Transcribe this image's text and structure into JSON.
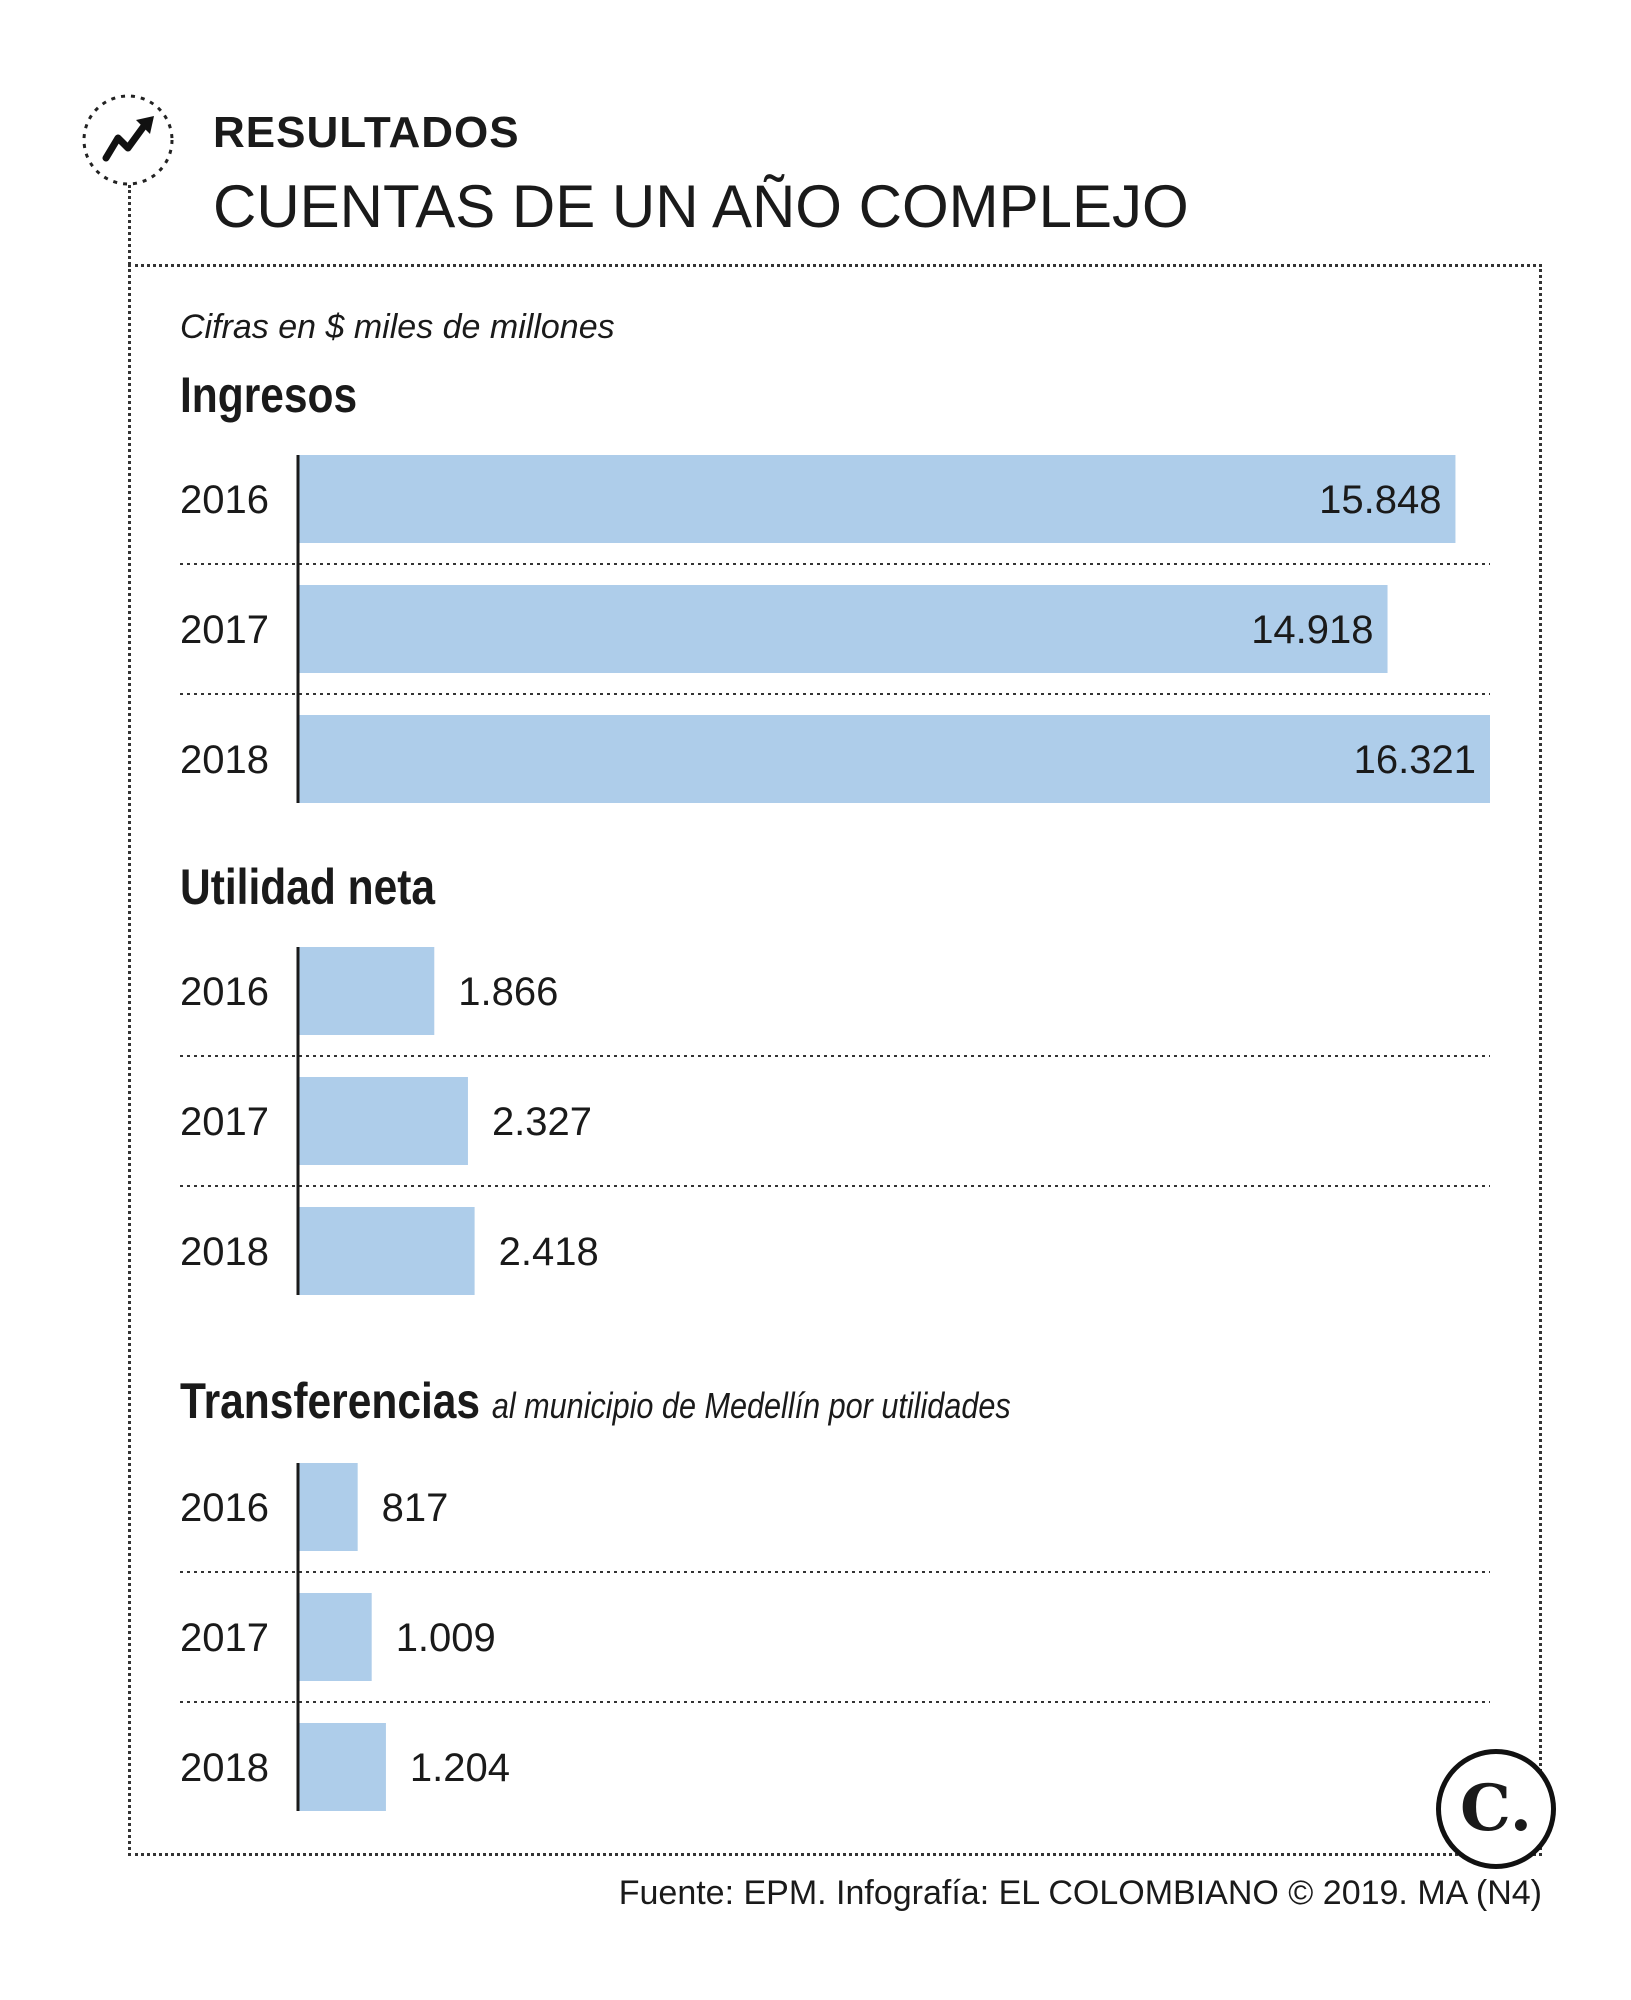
{
  "header": {
    "kicker": "RESULTADOS",
    "headline": "CUENTAS DE UN AÑO COMPLEJO",
    "icon": "trending-up-icon"
  },
  "units_note": "Cifras en $ miles de millones",
  "source": "Fuente: EPM. Infografía: EL COLOMBIANO © 2019. MA (N4)",
  "logo_icon": "el-colombiano-logo",
  "colors": {
    "bar": "#aecdea",
    "axis": "#1a1a1a",
    "text": "#1a1a1a"
  },
  "chart_data": [
    {
      "type": "bar",
      "orientation": "horizontal",
      "title": "Ingresos",
      "subtitle": "",
      "categories": [
        "2016",
        "2017",
        "2018"
      ],
      "values": [
        15848,
        14918,
        16321
      ],
      "value_labels": [
        "15.848",
        "14.918",
        "16.321"
      ],
      "label_position": "inside-end"
    },
    {
      "type": "bar",
      "orientation": "horizontal",
      "title": "Utilidad neta",
      "subtitle": "",
      "categories": [
        "2016",
        "2017",
        "2018"
      ],
      "values": [
        1866,
        2327,
        2418
      ],
      "value_labels": [
        "1.866",
        "2.327",
        "2.418"
      ],
      "label_position": "outside-end"
    },
    {
      "type": "bar",
      "orientation": "horizontal",
      "title": "Transferencias",
      "subtitle": "al municipio de Medellín por utilidades",
      "categories": [
        "2016",
        "2017",
        "2018"
      ],
      "values": [
        817,
        1009,
        1204
      ],
      "value_labels": [
        "817",
        "1.009",
        "1.204"
      ],
      "label_position": "outside-end"
    }
  ]
}
